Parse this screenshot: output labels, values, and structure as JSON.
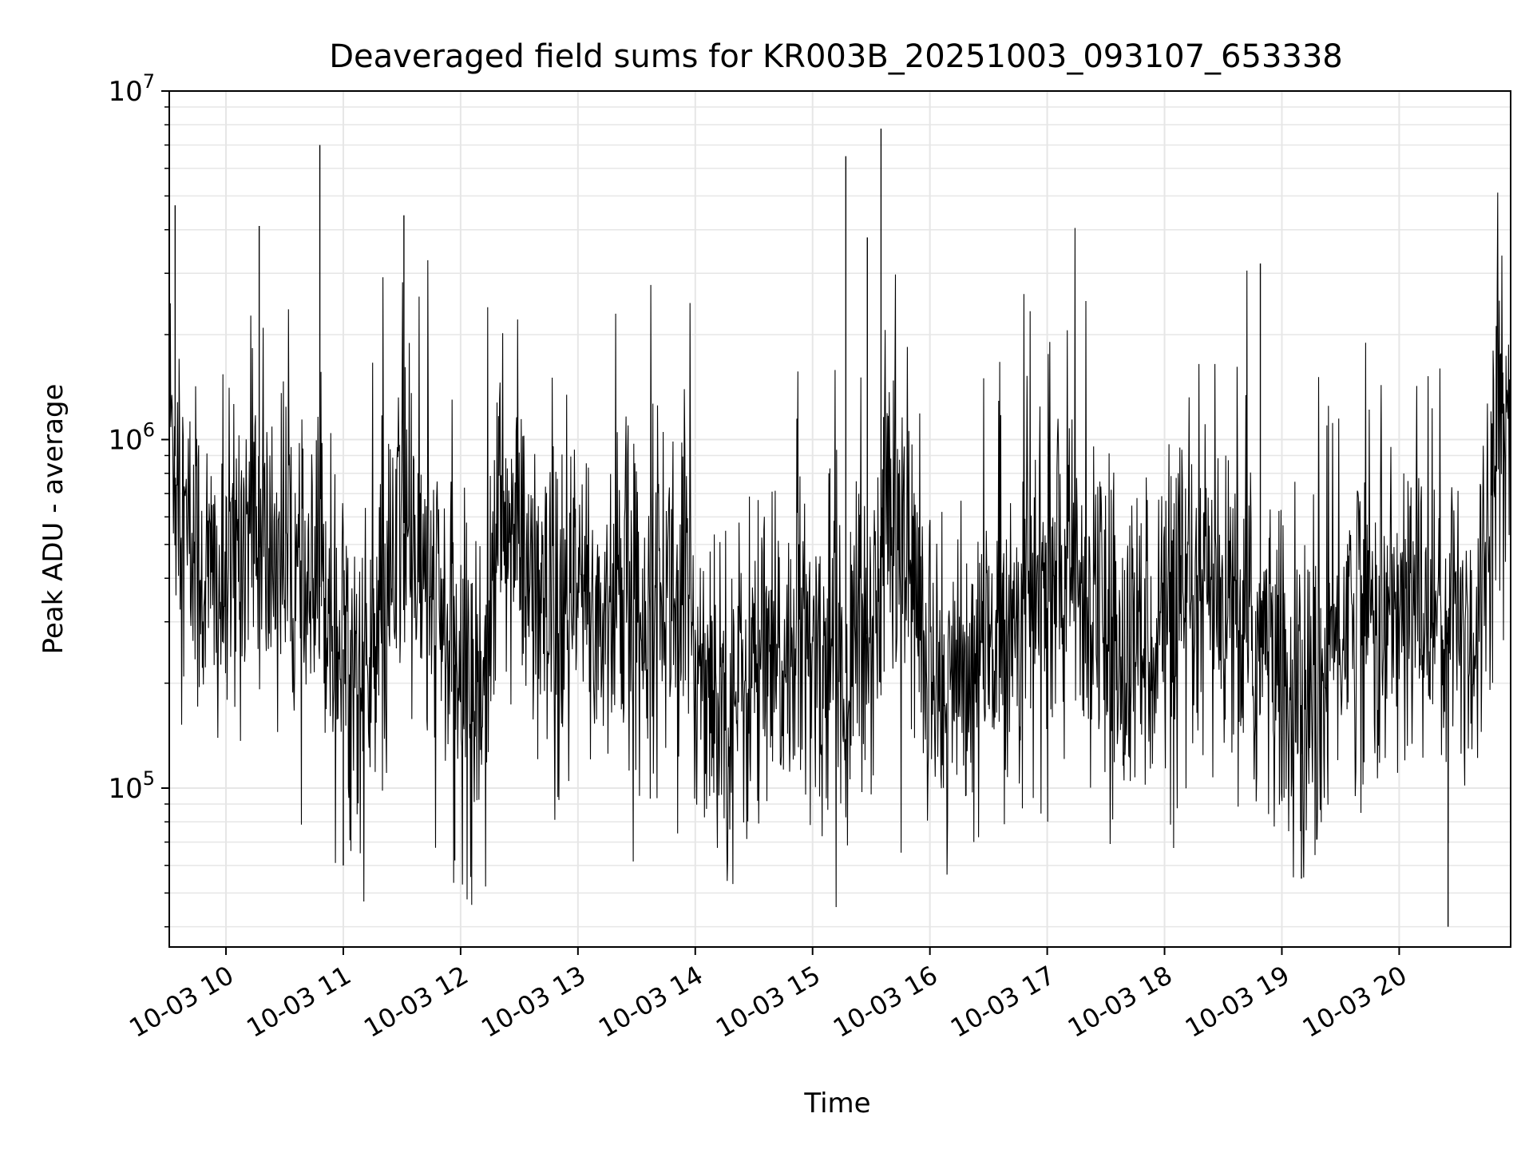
{
  "chart_data": {
    "type": "line",
    "title": "Deaveraged field sums for KR003B_20251003_093107_653338",
    "xlabel": "Time",
    "ylabel": "Peak ADU - average",
    "y_scale": "log",
    "ylim": [
      35000,
      10000000
    ],
    "xlim": [
      "2025-10-03 09:31",
      "2025-10-03 20:57"
    ],
    "grid": true,
    "legend": "none",
    "line_color": "#000000",
    "grid_color": "#e6e6e6",
    "y_ticks": [
      {
        "value": 100000,
        "base": "10",
        "exp": "5"
      },
      {
        "value": 1000000,
        "base": "10",
        "exp": "6"
      },
      {
        "value": 10000000,
        "base": "10",
        "exp": "7"
      }
    ],
    "x_ticks": [
      {
        "time": "2025-10-03 10:00",
        "label": "10-03 10"
      },
      {
        "time": "2025-10-03 11:00",
        "label": "10-03 11"
      },
      {
        "time": "2025-10-03 12:00",
        "label": "10-03 12"
      },
      {
        "time": "2025-10-03 13:00",
        "label": "10-03 13"
      },
      {
        "time": "2025-10-03 14:00",
        "label": "10-03 14"
      },
      {
        "time": "2025-10-03 15:00",
        "label": "10-03 15"
      },
      {
        "time": "2025-10-03 16:00",
        "label": "10-03 16"
      },
      {
        "time": "2025-10-03 17:00",
        "label": "10-03 17"
      },
      {
        "time": "2025-10-03 18:00",
        "label": "10-03 18"
      },
      {
        "time": "2025-10-03 19:00",
        "label": "10-03 19"
      },
      {
        "time": "2025-10-03 20:00",
        "label": "10-03 20"
      }
    ],
    "series": [
      {
        "x": [
          "2025-10-03 09:31",
          "2025-10-03 09:40",
          "2025-10-03 09:50",
          "2025-10-03 10:00",
          "2025-10-03 10:10",
          "2025-10-03 10:20",
          "2025-10-03 10:30",
          "2025-10-03 10:40",
          "2025-10-03 10:50",
          "2025-10-03 11:00",
          "2025-10-03 11:10",
          "2025-10-03 11:20",
          "2025-10-03 11:30",
          "2025-10-03 11:40",
          "2025-10-03 11:50",
          "2025-10-03 12:00",
          "2025-10-03 12:10",
          "2025-10-03 12:20",
          "2025-10-03 12:30",
          "2025-10-03 12:40",
          "2025-10-03 12:50",
          "2025-10-03 13:00",
          "2025-10-03 13:10",
          "2025-10-03 13:20",
          "2025-10-03 13:30",
          "2025-10-03 13:40",
          "2025-10-03 13:50",
          "2025-10-03 14:00",
          "2025-10-03 14:10",
          "2025-10-03 14:20",
          "2025-10-03 14:30",
          "2025-10-03 14:40",
          "2025-10-03 14:50",
          "2025-10-03 15:00",
          "2025-10-03 15:10",
          "2025-10-03 15:20",
          "2025-10-03 15:30",
          "2025-10-03 15:40",
          "2025-10-03 15:50",
          "2025-10-03 16:00",
          "2025-10-03 16:10",
          "2025-10-03 16:20",
          "2025-10-03 16:30",
          "2025-10-03 16:40",
          "2025-10-03 16:50",
          "2025-10-03 17:00",
          "2025-10-03 17:10",
          "2025-10-03 17:20",
          "2025-10-03 17:30",
          "2025-10-03 17:40",
          "2025-10-03 17:50",
          "2025-10-03 18:00",
          "2025-10-03 18:10",
          "2025-10-03 18:20",
          "2025-10-03 18:30",
          "2025-10-03 18:40",
          "2025-10-03 18:50",
          "2025-10-03 19:00",
          "2025-10-03 19:10",
          "2025-10-03 19:20",
          "2025-10-03 19:30",
          "2025-10-03 19:40",
          "2025-10-03 19:50",
          "2025-10-03 20:00",
          "2025-10-03 20:10",
          "2025-10-03 20:20",
          "2025-10-03 20:30",
          "2025-10-03 20:40",
          "2025-10-03 20:50",
          "2025-10-03 20:57"
        ],
        "y": [
          1200000,
          500000,
          400000,
          350000,
          600000,
          450000,
          500000,
          300000,
          400000,
          250000,
          200000,
          250000,
          600000,
          400000,
          300000,
          200000,
          180000,
          600000,
          500000,
          300000,
          250000,
          350000,
          300000,
          350000,
          300000,
          400000,
          350000,
          250000,
          200000,
          180000,
          220000,
          200000,
          250000,
          220000,
          250000,
          200000,
          300000,
          700000,
          400000,
          250000,
          180000,
          200000,
          250000,
          300000,
          350000,
          350000,
          400000,
          380000,
          250000,
          220000,
          280000,
          300000,
          250000,
          350000,
          300000,
          280000,
          250000,
          200000,
          150000,
          180000,
          300000,
          350000,
          300000,
          300000,
          350000,
          320000,
          300000,
          280000,
          1200000,
          1100000
        ],
        "spikes": [
          {
            "x": "2025-10-03 09:34",
            "y": 4700000
          },
          {
            "x": "2025-10-03 10:17",
            "y": 4100000
          },
          {
            "x": "2025-10-03 10:48",
            "y": 7000000
          },
          {
            "x": "2025-10-03 11:31",
            "y": 4400000
          },
          {
            "x": "2025-10-03 15:17",
            "y": 6500000
          },
          {
            "x": "2025-10-03 15:35",
            "y": 7800000
          },
          {
            "x": "2025-10-03 15:28",
            "y": 3800000
          },
          {
            "x": "2025-10-03 18:49",
            "y": 3200000
          },
          {
            "x": "2025-10-03 11:00",
            "y": 60000
          },
          {
            "x": "2025-10-03 11:57",
            "y": 62000
          },
          {
            "x": "2025-10-03 19:10",
            "y": 55000
          },
          {
            "x": "2025-10-03 20:25",
            "y": 40000
          }
        ]
      }
    ]
  }
}
